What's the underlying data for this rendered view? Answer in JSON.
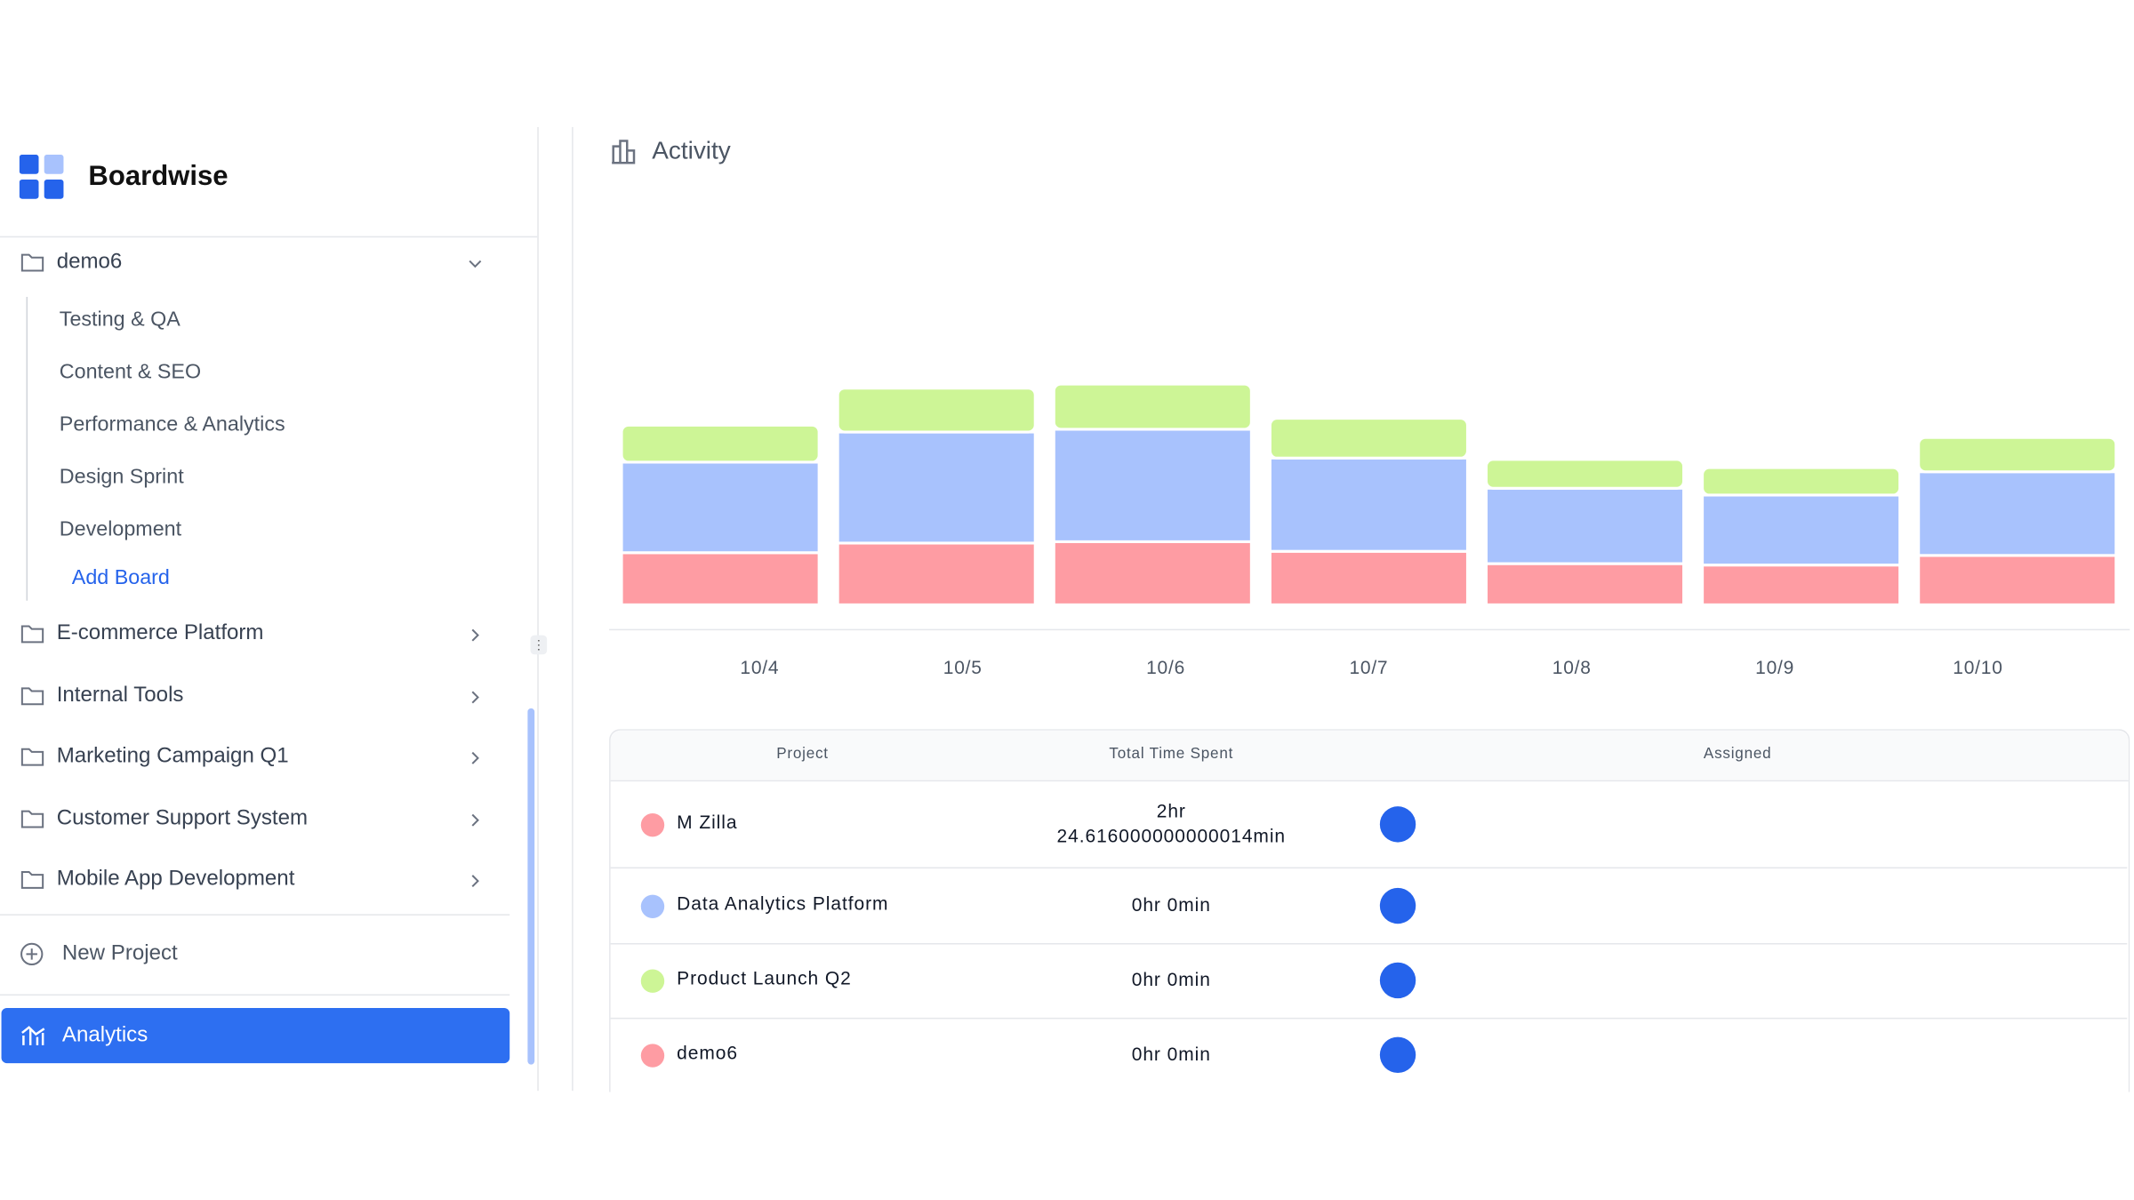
{
  "sidebar": {
    "brand": "Boardwise",
    "open_project": {
      "name": "demo6",
      "boards": [
        "Testing & QA",
        "Content & SEO",
        "Performance & Analytics",
        "Design Sprint",
        "Development"
      ],
      "add_board": "Add Board"
    },
    "projects": [
      "E-commerce Platform",
      "Internal Tools",
      "Marketing Campaign Q1",
      "Customer Support System",
      "Mobile App Development"
    ],
    "new_project": "New Project",
    "analytics": "Analytics"
  },
  "header": {
    "title": "Activity"
  },
  "chart_data": {
    "type": "bar",
    "stacked": true,
    "categories": [
      "10/4",
      "10/5",
      "10/6",
      "10/7",
      "10/8",
      "10/9",
      "10/10"
    ],
    "ylim": [
      0,
      290
    ],
    "series": [
      {
        "color": "#fe9ca3",
        "values": [
          38,
          45,
          46,
          39,
          30,
          29,
          36
        ]
      },
      {
        "color": "#a8c2fd",
        "values": [
          66,
          81,
          82,
          68,
          55,
          51,
          61
        ]
      },
      {
        "color": "#cdf596",
        "values": [
          27,
          32,
          33,
          29,
          21,
          20,
          25
        ]
      }
    ]
  },
  "table": {
    "columns": [
      "Project",
      "Total Time Spent",
      "Assigned"
    ],
    "rows": [
      {
        "name": "M Zilla",
        "color": "#fe9ca3",
        "time": "2hr 24.616000000000014min"
      },
      {
        "name": "Data Analytics Platform",
        "color": "#a8c2fd",
        "time": "0hr 0min"
      },
      {
        "name": "Product Launch Q2",
        "color": "#cdf596",
        "time": "0hr 0min"
      },
      {
        "name": "demo6",
        "color": "#fe9ca3",
        "time": "0hr 0min"
      }
    ]
  }
}
